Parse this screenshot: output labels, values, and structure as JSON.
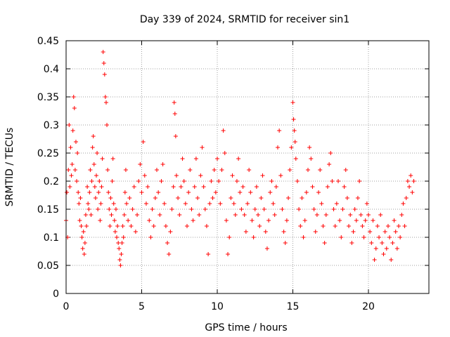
{
  "chart_data": {
    "type": "scatter",
    "title": "Day 339 of 2024, SRMTID for receiver sin1",
    "xlabel": "GPS time / hours",
    "ylabel": "SRMTID / TECUs",
    "xlim": [
      0,
      24
    ],
    "ylim": [
      0,
      0.45
    ],
    "x_ticks": [
      0,
      5,
      10,
      15,
      20
    ],
    "y_ticks": [
      0,
      0.05,
      0.1,
      0.15,
      0.2,
      0.25,
      0.3,
      0.35,
      0.4,
      0.45
    ],
    "grid": true,
    "legend": "none",
    "series": [
      {
        "marker": "plus",
        "color": "#ff0000",
        "points": [
          [
            0.0,
            0.13
          ],
          [
            0.05,
            0.18
          ],
          [
            0.1,
            0.1
          ],
          [
            0.15,
            0.22
          ],
          [
            0.2,
            0.3
          ],
          [
            0.25,
            0.19
          ],
          [
            0.3,
            0.26
          ],
          [
            0.35,
            0.21
          ],
          [
            0.4,
            0.23
          ],
          [
            0.45,
            0.29
          ],
          [
            0.5,
            0.35
          ],
          [
            0.55,
            0.33
          ],
          [
            0.6,
            0.22
          ],
          [
            0.65,
            0.27
          ],
          [
            0.7,
            0.2
          ],
          [
            0.75,
            0.25
          ],
          [
            0.8,
            0.18
          ],
          [
            0.85,
            0.16
          ],
          [
            0.9,
            0.13
          ],
          [
            0.95,
            0.17
          ],
          [
            1.0,
            0.12
          ],
          [
            1.05,
            0.1
          ],
          [
            1.1,
            0.08
          ],
          [
            1.15,
            0.11
          ],
          [
            1.2,
            0.07
          ],
          [
            1.25,
            0.09
          ],
          [
            1.3,
            0.14
          ],
          [
            1.35,
            0.12
          ],
          [
            1.4,
            0.19
          ],
          [
            1.45,
            0.16
          ],
          [
            1.5,
            0.15
          ],
          [
            1.55,
            0.18
          ],
          [
            1.6,
            0.22
          ],
          [
            1.65,
            0.14
          ],
          [
            1.7,
            0.2
          ],
          [
            1.75,
            0.26
          ],
          [
            1.8,
            0.28
          ],
          [
            1.85,
            0.23
          ],
          [
            1.9,
            0.19
          ],
          [
            1.95,
            0.17
          ],
          [
            2.0,
            0.21
          ],
          [
            2.05,
            0.25
          ],
          [
            2.1,
            0.15
          ],
          [
            2.15,
            0.18
          ],
          [
            2.2,
            0.2
          ],
          [
            2.25,
            0.13
          ],
          [
            2.3,
            0.16
          ],
          [
            2.35,
            0.19
          ],
          [
            2.4,
            0.24
          ],
          [
            2.45,
            0.43
          ],
          [
            2.5,
            0.41
          ],
          [
            2.55,
            0.39
          ],
          [
            2.6,
            0.35
          ],
          [
            2.65,
            0.34
          ],
          [
            2.7,
            0.3
          ],
          [
            2.75,
            0.22
          ],
          [
            2.8,
            0.18
          ],
          [
            2.85,
            0.15
          ],
          [
            2.9,
            0.12
          ],
          [
            2.95,
            0.17
          ],
          [
            3.0,
            0.14
          ],
          [
            3.05,
            0.2
          ],
          [
            3.1,
            0.24
          ],
          [
            3.15,
            0.16
          ],
          [
            3.2,
            0.13
          ],
          [
            3.25,
            0.11
          ],
          [
            3.3,
            0.15
          ],
          [
            3.35,
            0.1
          ],
          [
            3.4,
            0.12
          ],
          [
            3.45,
            0.09
          ],
          [
            3.5,
            0.08
          ],
          [
            3.55,
            0.06
          ],
          [
            3.6,
            0.05
          ],
          [
            3.65,
            0.07
          ],
          [
            3.7,
            0.09
          ],
          [
            3.75,
            0.12
          ],
          [
            3.8,
            0.1
          ],
          [
            3.85,
            0.14
          ],
          [
            3.9,
            0.18
          ],
          [
            3.95,
            0.22
          ],
          [
            4.0,
            0.16
          ],
          [
            4.1,
            0.13
          ],
          [
            4.2,
            0.17
          ],
          [
            4.3,
            0.12
          ],
          [
            4.4,
            0.15
          ],
          [
            4.5,
            0.19
          ],
          [
            4.6,
            0.11
          ],
          [
            4.7,
            0.14
          ],
          [
            4.8,
            0.2
          ],
          [
            4.9,
            0.23
          ],
          [
            5.0,
            0.18
          ],
          [
            5.1,
            0.27
          ],
          [
            5.2,
            0.21
          ],
          [
            5.3,
            0.16
          ],
          [
            5.4,
            0.19
          ],
          [
            5.5,
            0.13
          ],
          [
            5.6,
            0.1
          ],
          [
            5.7,
            0.15
          ],
          [
            5.8,
            0.12
          ],
          [
            5.9,
            0.17
          ],
          [
            6.0,
            0.22
          ],
          [
            6.1,
            0.18
          ],
          [
            6.2,
            0.14
          ],
          [
            6.3,
            0.2
          ],
          [
            6.4,
            0.23
          ],
          [
            6.5,
            0.16
          ],
          [
            6.6,
            0.12
          ],
          [
            6.7,
            0.09
          ],
          [
            6.8,
            0.07
          ],
          [
            6.9,
            0.11
          ],
          [
            7.0,
            0.15
          ],
          [
            7.1,
            0.19
          ],
          [
            7.15,
            0.34
          ],
          [
            7.2,
            0.32
          ],
          [
            7.25,
            0.28
          ],
          [
            7.3,
            0.21
          ],
          [
            7.4,
            0.17
          ],
          [
            7.5,
            0.14
          ],
          [
            7.6,
            0.19
          ],
          [
            7.7,
            0.24
          ],
          [
            7.8,
            0.2
          ],
          [
            7.9,
            0.16
          ],
          [
            8.0,
            0.12
          ],
          [
            8.1,
            0.18
          ],
          [
            8.2,
            0.22
          ],
          [
            8.3,
            0.15
          ],
          [
            8.4,
            0.13
          ],
          [
            8.5,
            0.19
          ],
          [
            8.6,
            0.24
          ],
          [
            8.7,
            0.17
          ],
          [
            8.8,
            0.14
          ],
          [
            8.9,
            0.21
          ],
          [
            9.0,
            0.26
          ],
          [
            9.1,
            0.19
          ],
          [
            9.2,
            0.15
          ],
          [
            9.3,
            0.12
          ],
          [
            9.4,
            0.07
          ],
          [
            9.5,
            0.16
          ],
          [
            9.6,
            0.2
          ],
          [
            9.7,
            0.17
          ],
          [
            9.8,
            0.22
          ],
          [
            9.9,
            0.18
          ],
          [
            10.0,
            0.24
          ],
          [
            10.1,
            0.2
          ],
          [
            10.2,
            0.16
          ],
          [
            10.3,
            0.22
          ],
          [
            10.4,
            0.29
          ],
          [
            10.5,
            0.25
          ],
          [
            10.6,
            0.13
          ],
          [
            10.7,
            0.07
          ],
          [
            10.8,
            0.1
          ],
          [
            10.9,
            0.17
          ],
          [
            11.0,
            0.21
          ],
          [
            11.1,
            0.16
          ],
          [
            11.2,
            0.14
          ],
          [
            11.3,
            0.2
          ],
          [
            11.4,
            0.24
          ],
          [
            11.5,
            0.18
          ],
          [
            11.6,
            0.15
          ],
          [
            11.7,
            0.19
          ],
          [
            11.8,
            0.14
          ],
          [
            11.9,
            0.11
          ],
          [
            12.0,
            0.16
          ],
          [
            12.1,
            0.22
          ],
          [
            12.2,
            0.18
          ],
          [
            12.3,
            0.13
          ],
          [
            12.4,
            0.1
          ],
          [
            12.5,
            0.15
          ],
          [
            12.6,
            0.19
          ],
          [
            12.7,
            0.14
          ],
          [
            12.8,
            0.12
          ],
          [
            12.9,
            0.17
          ],
          [
            13.0,
            0.21
          ],
          [
            13.1,
            0.15
          ],
          [
            13.2,
            0.11
          ],
          [
            13.3,
            0.08
          ],
          [
            13.4,
            0.13
          ],
          [
            13.5,
            0.18
          ],
          [
            13.6,
            0.2
          ],
          [
            13.7,
            0.16
          ],
          [
            13.8,
            0.14
          ],
          [
            13.9,
            0.19
          ],
          [
            14.0,
            0.26
          ],
          [
            14.1,
            0.29
          ],
          [
            14.2,
            0.21
          ],
          [
            14.3,
            0.15
          ],
          [
            14.4,
            0.11
          ],
          [
            14.5,
            0.09
          ],
          [
            14.6,
            0.13
          ],
          [
            14.7,
            0.17
          ],
          [
            14.8,
            0.22
          ],
          [
            14.9,
            0.26
          ],
          [
            15.0,
            0.34
          ],
          [
            15.05,
            0.31
          ],
          [
            15.1,
            0.29
          ],
          [
            15.15,
            0.27
          ],
          [
            15.2,
            0.24
          ],
          [
            15.3,
            0.2
          ],
          [
            15.4,
            0.15
          ],
          [
            15.5,
            0.12
          ],
          [
            15.6,
            0.17
          ],
          [
            15.7,
            0.1
          ],
          [
            15.8,
            0.13
          ],
          [
            15.9,
            0.18
          ],
          [
            16.0,
            0.22
          ],
          [
            16.1,
            0.26
          ],
          [
            16.2,
            0.24
          ],
          [
            16.3,
            0.19
          ],
          [
            16.4,
            0.15
          ],
          [
            16.5,
            0.11
          ],
          [
            16.6,
            0.14
          ],
          [
            16.7,
            0.18
          ],
          [
            16.8,
            0.22
          ],
          [
            16.9,
            0.16
          ],
          [
            17.0,
            0.12
          ],
          [
            17.1,
            0.09
          ],
          [
            17.2,
            0.14
          ],
          [
            17.3,
            0.19
          ],
          [
            17.4,
            0.23
          ],
          [
            17.5,
            0.25
          ],
          [
            17.6,
            0.2
          ],
          [
            17.7,
            0.15
          ],
          [
            17.8,
            0.12
          ],
          [
            17.9,
            0.16
          ],
          [
            18.0,
            0.2
          ],
          [
            18.1,
            0.13
          ],
          [
            18.2,
            0.1
          ],
          [
            18.3,
            0.15
          ],
          [
            18.4,
            0.19
          ],
          [
            18.5,
            0.22
          ],
          [
            18.6,
            0.17
          ],
          [
            18.7,
            0.12
          ],
          [
            18.8,
            0.14
          ],
          [
            18.9,
            0.09
          ],
          [
            19.0,
            0.11
          ],
          [
            19.1,
            0.15
          ],
          [
            19.2,
            0.13
          ],
          [
            19.3,
            0.17
          ],
          [
            19.4,
            0.2
          ],
          [
            19.5,
            0.14
          ],
          [
            19.6,
            0.12
          ],
          [
            19.7,
            0.1
          ],
          [
            19.8,
            0.13
          ],
          [
            19.9,
            0.16
          ],
          [
            20.0,
            0.14
          ],
          [
            20.1,
            0.11
          ],
          [
            20.2,
            0.09
          ],
          [
            20.3,
            0.13
          ],
          [
            20.4,
            0.06
          ],
          [
            20.5,
            0.08
          ],
          [
            20.6,
            0.12
          ],
          [
            20.7,
            0.1
          ],
          [
            20.8,
            0.14
          ],
          [
            20.9,
            0.09
          ],
          [
            21.0,
            0.07
          ],
          [
            21.1,
            0.11
          ],
          [
            21.2,
            0.08
          ],
          [
            21.3,
            0.12
          ],
          [
            21.4,
            0.1
          ],
          [
            21.5,
            0.06
          ],
          [
            21.6,
            0.09
          ],
          [
            21.7,
            0.13
          ],
          [
            21.8,
            0.11
          ],
          [
            21.9,
            0.08
          ],
          [
            22.0,
            0.12
          ],
          [
            22.1,
            0.1
          ],
          [
            22.2,
            0.14
          ],
          [
            22.3,
            0.16
          ],
          [
            22.4,
            0.12
          ],
          [
            22.5,
            0.17
          ],
          [
            22.6,
            0.2
          ],
          [
            22.7,
            0.19
          ],
          [
            22.8,
            0.21
          ],
          [
            22.9,
            0.18
          ],
          [
            23.0,
            0.2
          ]
        ]
      }
    ]
  }
}
